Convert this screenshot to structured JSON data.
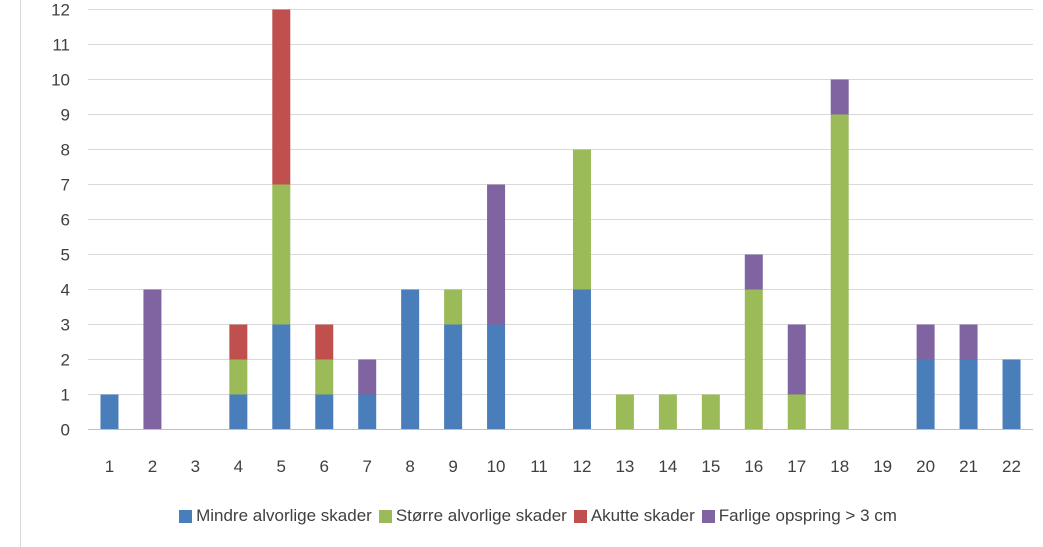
{
  "chart_data": {
    "type": "bar",
    "stacked": true,
    "categories": [
      "1",
      "2",
      "3",
      "4",
      "5",
      "6",
      "7",
      "8",
      "9",
      "10",
      "11",
      "12",
      "13",
      "14",
      "15",
      "16",
      "17",
      "18",
      "19",
      "20",
      "21",
      "22"
    ],
    "series": [
      {
        "name": "Mindre alvorlige skader",
        "color": "#4a7ebb",
        "values": [
          1,
          0,
          0,
          1,
          3,
          1,
          1,
          4,
          3,
          3,
          0,
          4,
          0,
          0,
          0,
          0,
          0,
          0,
          0,
          2,
          2,
          2
        ]
      },
      {
        "name": "Større alvorlige skader",
        "color": "#9bbb59",
        "values": [
          0,
          0,
          0,
          1,
          4,
          1,
          0,
          0,
          1,
          0,
          0,
          4,
          1,
          1,
          1,
          4,
          1,
          9,
          0,
          0,
          0,
          0
        ]
      },
      {
        "name": "Akutte skader",
        "color": "#c0504d",
        "values": [
          0,
          0,
          0,
          1,
          5,
          1,
          0,
          0,
          0,
          0,
          0,
          0,
          0,
          0,
          0,
          0,
          0,
          0,
          0,
          0,
          0,
          0
        ]
      },
      {
        "name": "Farlige opspring > 3 cm",
        "color": "#8064a2",
        "values": [
          0,
          4,
          0,
          0,
          0,
          0,
          1,
          0,
          0,
          4,
          0,
          0,
          0,
          0,
          0,
          1,
          2,
          1,
          0,
          1,
          1,
          0
        ]
      }
    ],
    "yticks": [
      "0",
      "1",
      "2",
      "3",
      "4",
      "5",
      "6",
      "7",
      "8",
      "9",
      "10",
      "11",
      "12"
    ],
    "ylim": [
      0,
      12
    ],
    "grid": true,
    "legend_position": "bottom",
    "title": "",
    "xlabel": "",
    "ylabel": ""
  }
}
